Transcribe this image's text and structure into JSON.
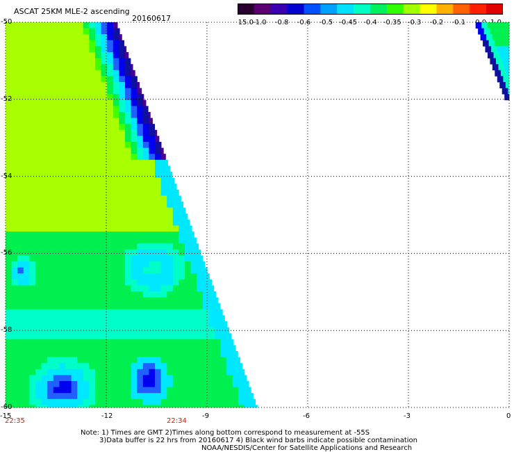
{
  "header": {
    "title": "ASCAT 25KM MLE-2 ascending",
    "date": "20160617"
  },
  "colorbar": {
    "labels": [
      "-15.0",
      "-1.0",
      "-0.8",
      "-0.6",
      "-0.5",
      "-0.45",
      "-0.4",
      "-0.35",
      "-0.3",
      "-0.2",
      "-0.1",
      "0.0",
      "1.0"
    ],
    "colors": [
      "#2a0030",
      "#5a0070",
      "#3a00b0",
      "#0000d0",
      "#0050ff",
      "#00a0ff",
      "#00e0ff",
      "#00ffc0",
      "#00f060",
      "#30ff00",
      "#a0ff00",
      "#ffff00",
      "#ffb000",
      "#ff6000",
      "#ff2000",
      "#e00000"
    ]
  },
  "chart_data": {
    "type": "heatmap",
    "x_axis": {
      "ticks": [
        "-15",
        "-12",
        "-9",
        "-6",
        "-3",
        "0"
      ],
      "range": [
        -15,
        0
      ]
    },
    "y_axis": {
      "ticks": [
        "-50",
        "-52",
        "-54",
        "-56",
        "-58",
        "-60"
      ],
      "range": [
        -60,
        -50
      ]
    },
    "times": [
      {
        "label": "22:35",
        "lon": -15
      },
      {
        "label": "22:34",
        "lon": -10.2
      }
    ],
    "swaths": [
      {
        "name": "left",
        "lon_west": -15,
        "lat_north": -50,
        "lat_south": -60,
        "edge_lon_north": -11.7,
        "edge_lon_south": -7.5
      },
      {
        "name": "top-right",
        "lon_west": -1,
        "lon_east": 0,
        "lat_north": -50,
        "lat_south": -51.9
      }
    ],
    "grid": true
  },
  "notes": {
    "line1": "Note: 1) Times are GMT 2)Times along bottom correspond to measurement at -55S",
    "line2": "3)Data buffer is 22 hrs from 20160617 4) Black wind barbs indicate possible contamination",
    "line3": "NOAA/NESDIS/Center for Satellite Applications and Research"
  }
}
